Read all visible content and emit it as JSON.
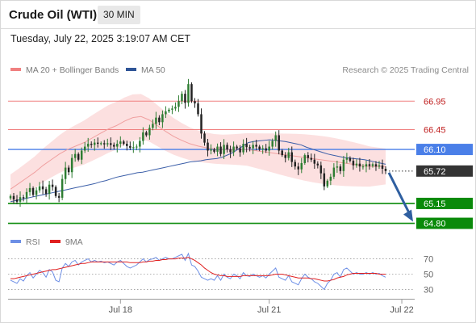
{
  "header": {
    "title": "Crude Oil (WTI)",
    "timeframe": "30 MIN",
    "timestamp": "Tuesday, July 22, 2025 3:19:07 AM CET"
  },
  "legend": {
    "items": [
      {
        "label": "MA 20 + Bollinger Bands",
        "color": "#f08080"
      },
      {
        "label": "MA 50",
        "color": "#2f5597"
      }
    ],
    "credit": "Research © 2025 Trading Central"
  },
  "colors": {
    "up": "#2e7d32",
    "down": "#222222",
    "band_fill": "#fbd6d6",
    "ma20": "#f0a0a0",
    "ma50": "#3b5ea8",
    "resistance": "#f08080",
    "pivot": "#4a7fe8",
    "support": "#0a8a0a",
    "arrow": "#2f5fa0",
    "rsi": "#6d8fe6",
    "rsi_ma": "#e02020"
  },
  "chart_data": [
    {
      "type": "candlestick",
      "title": "",
      "x_ticks": [
        "Jul 18",
        "Jul 21",
        "Jul 22"
      ],
      "y_range": [
        64.68,
        67.38
      ],
      "levels": [
        {
          "value": 66.95,
          "label": "66.95",
          "kind": "resistance"
        },
        {
          "value": 66.45,
          "label": "66.45",
          "kind": "resistance"
        },
        {
          "value": 66.1,
          "label": "66.10",
          "kind": "pivot"
        },
        {
          "value": 65.72,
          "label": "65.72",
          "kind": "last"
        },
        {
          "value": 65.15,
          "label": "65.15",
          "kind": "support"
        },
        {
          "value": 64.8,
          "label": "64.80",
          "kind": "support"
        }
      ],
      "projection": {
        "from": 65.72,
        "to": 64.8
      },
      "closes": [
        65.28,
        65.22,
        65.18,
        65.26,
        65.24,
        65.35,
        65.42,
        65.3,
        65.38,
        65.45,
        65.4,
        65.32,
        65.48,
        65.44,
        65.28,
        65.25,
        65.58,
        65.78,
        65.7,
        65.95,
        66.02,
        65.92,
        66.08,
        66.15,
        66.2,
        66.18,
        66.22,
        66.2,
        66.21,
        66.19,
        66.21,
        66.18,
        66.15,
        66.2,
        66.24,
        66.2,
        66.16,
        66.13,
        66.14,
        66.15,
        66.25,
        66.4,
        66.35,
        66.48,
        66.55,
        66.66,
        66.58,
        66.72,
        66.77,
        66.8,
        66.82,
        66.85,
        66.95,
        67.08,
        66.92,
        67.25,
        66.95,
        66.91,
        66.72,
        66.38,
        66.22,
        66.08,
        66.1,
        66.06,
        66.15,
        66.02,
        66.18,
        66.1,
        66.05,
        66.15,
        66.12,
        66.05,
        66.2,
        66.14,
        66.12,
        66.18,
        66.15,
        66.1,
        66.12,
        66.08,
        66.15,
        66.25,
        66.35,
        66.08,
        66.0,
        65.95,
        66.05,
        65.88,
        65.8,
        65.75,
        65.86,
        66.0,
        65.95,
        65.92,
        65.85,
        65.82,
        65.68,
        65.45,
        65.55,
        65.62,
        65.78,
        65.8,
        65.72,
        65.92,
        65.95,
        65.9,
        65.82,
        65.85,
        65.8,
        65.8,
        65.84,
        65.81,
        65.84,
        65.8,
        65.82,
        65.76,
        65.72
      ],
      "ma50": [
        65.18,
        65.2,
        65.22,
        65.24,
        65.26,
        65.28,
        65.3,
        65.32,
        65.34,
        65.36,
        65.38,
        65.4,
        65.42,
        65.44,
        65.46,
        65.48,
        65.5,
        65.53,
        65.55,
        65.58,
        65.61,
        65.63,
        65.65,
        65.67,
        65.69,
        65.7,
        65.72,
        65.74,
        65.76,
        65.78,
        65.8,
        65.82,
        65.84,
        65.86,
        65.88,
        65.89,
        65.9,
        65.92,
        65.93,
        65.94,
        65.96,
        66.0,
        66.04,
        66.1,
        66.16,
        66.22,
        66.24,
        66.25,
        66.26,
        66.27,
        66.26,
        66.25,
        66.24,
        66.22,
        66.2,
        66.18,
        66.14,
        66.11,
        66.08,
        66.05,
        66.02,
        66.0,
        65.98,
        65.96,
        65.95,
        65.94,
        65.93,
        65.92,
        65.9,
        65.88,
        65.86,
        65.84
      ],
      "ma20": [
        65.4,
        65.5,
        65.6,
        65.7,
        65.82,
        65.92,
        66.02,
        66.1,
        66.16,
        66.22,
        66.3,
        66.38,
        66.46,
        66.52,
        66.6,
        66.66,
        66.68,
        66.62,
        66.52,
        66.42,
        66.33,
        66.26,
        66.2,
        66.16,
        66.13,
        66.11,
        66.1,
        66.1,
        66.1,
        66.1,
        66.08,
        66.06,
        66.04,
        66.02,
        66.0,
        65.98,
        65.96,
        65.94,
        65.92,
        65.9,
        65.88,
        65.86,
        65.84,
        65.82,
        65.8,
        65.8,
        65.8
      ],
      "rsi": {
        "label": "RSI",
        "ma_label": "9MA",
        "levels": [
          70,
          50,
          30
        ],
        "range": [
          22,
          78
        ],
        "values": [
          42,
          40,
          38,
          44,
          41,
          48,
          52,
          45,
          50,
          55,
          52,
          46,
          56,
          53,
          42,
          40,
          58,
          64,
          60,
          66,
          68,
          62,
          66,
          68,
          70,
          66,
          68,
          66,
          67,
          65,
          66,
          64,
          62,
          66,
          68,
          64,
          60,
          58,
          60,
          62,
          66,
          70,
          66,
          69,
          70,
          72,
          68,
          70,
          72,
          70,
          70,
          72,
          74,
          76,
          68,
          77,
          62,
          60,
          54,
          46,
          44,
          42,
          44,
          42,
          48,
          42,
          50,
          46,
          44,
          50,
          48,
          44,
          52,
          48,
          47,
          50,
          48,
          46,
          48,
          45,
          50,
          54,
          58,
          46,
          44,
          42,
          48,
          40,
          38,
          36,
          44,
          50,
          46,
          44,
          40,
          38,
          34,
          30,
          38,
          42,
          50,
          52,
          46,
          56,
          58,
          54,
          50,
          52,
          50,
          50,
          52,
          50,
          52,
          50,
          51,
          48,
          46
        ],
        "ma": [
          44,
          44,
          45,
          46,
          47,
          48,
          49,
          50,
          51,
          52,
          53,
          54,
          55,
          56,
          56,
          57,
          58,
          59,
          60,
          61,
          62,
          63,
          64,
          64,
          65,
          66,
          66,
          66,
          66,
          66,
          66,
          66,
          66,
          66,
          66,
          66,
          66,
          65,
          65,
          65,
          65,
          66,
          66,
          67,
          67,
          68,
          68,
          69,
          69,
          70,
          70,
          70,
          71,
          71,
          71,
          72,
          70,
          68,
          65,
          62,
          58,
          55,
          52,
          50,
          49,
          48,
          48,
          47,
          47,
          47,
          47,
          47,
          48,
          48,
          48,
          48,
          48,
          48,
          48,
          48,
          48,
          49,
          50,
          50,
          50,
          49,
          48,
          47,
          46,
          45,
          45,
          45,
          45,
          44,
          44,
          43,
          42,
          41,
          41,
          42,
          43,
          45,
          46,
          47,
          49,
          50,
          51,
          51,
          51,
          51,
          51,
          51,
          51,
          51,
          50,
          50,
          50
        ]
      }
    }
  ]
}
